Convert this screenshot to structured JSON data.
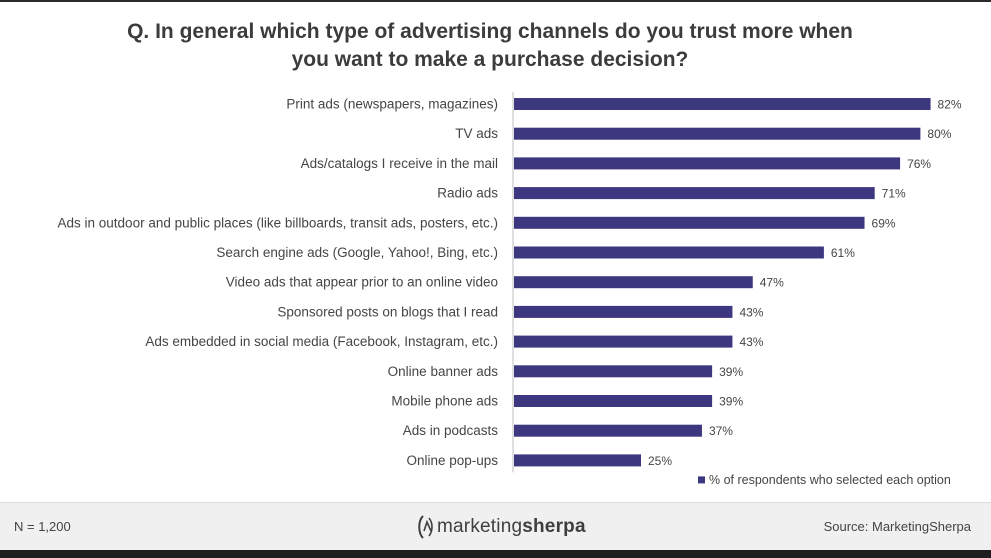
{
  "chart_data": {
    "type": "bar",
    "orientation": "horizontal",
    "title": "Q. In general which type of advertising channels do you trust more when you want to make a purchase decision?",
    "title_lines": [
      "Q. In general which type of advertising channels do you trust more when",
      "you want to make a purchase decision?"
    ],
    "categories": [
      "Print ads (newspapers, magazines)",
      "TV ads",
      "Ads/catalogs I receive in the mail",
      "Radio ads",
      "Ads in outdoor and public places (like billboards, transit ads, posters, etc.)",
      "Search engine ads (Google, Yahoo!, Bing, etc.)",
      "Video ads that appear prior to an online video",
      "Sponsored posts on blogs that I read",
      "Ads embedded in social media (Facebook, Instagram, etc.)",
      "Online banner ads",
      "Mobile phone ads",
      "Ads in podcasts",
      "Online pop-ups"
    ],
    "values": [
      82,
      80,
      76,
      71,
      69,
      61,
      47,
      43,
      43,
      39,
      39,
      37,
      25
    ],
    "value_suffix": "%",
    "legend": "% of respondents who selected each option",
    "legend_position": "bottom-right",
    "xlim": [
      0,
      100
    ],
    "grid": false,
    "bar_color": "#3d3780"
  },
  "footer": {
    "sample": "N = 1,200",
    "logo_part1": "marketing",
    "logo_part2": "sherpa",
    "source": "Source: MarketingSherpa"
  }
}
